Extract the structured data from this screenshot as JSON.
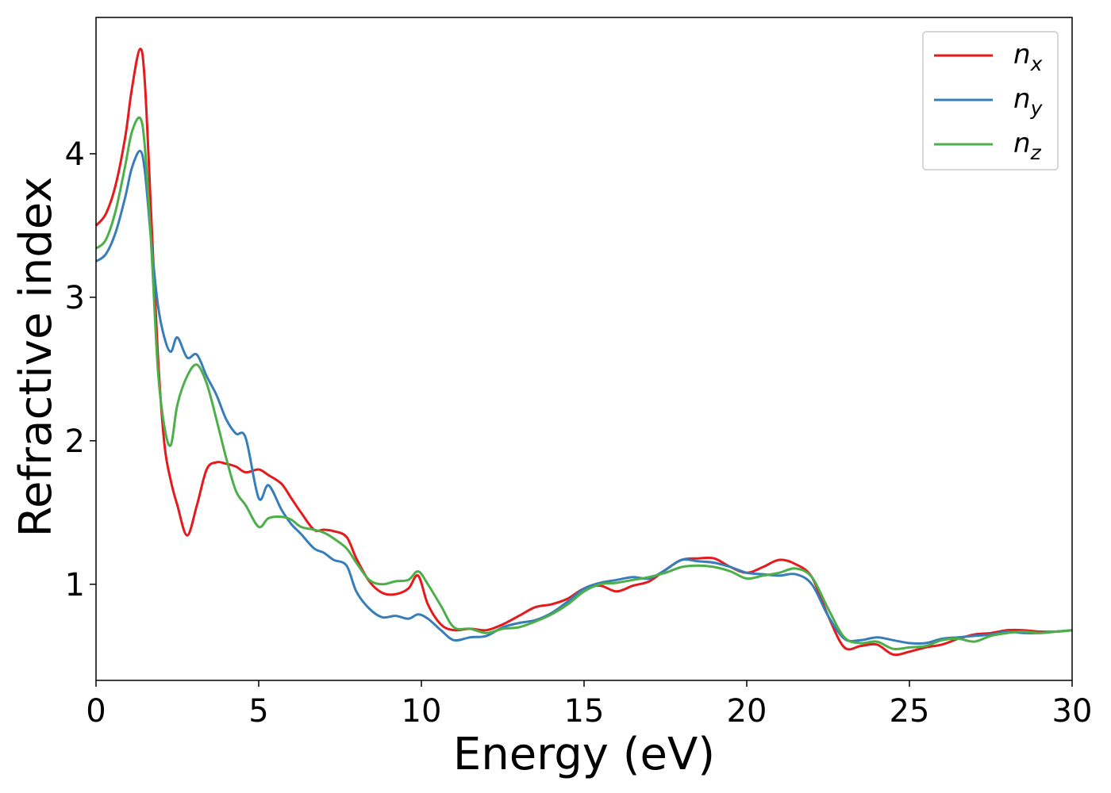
{
  "chart_data": {
    "type": "line",
    "title": "",
    "xlabel": "Energy (eV)",
    "ylabel": "Refractive index",
    "xlim": [
      0,
      30
    ],
    "ylim": [
      0.33,
      4.95
    ],
    "xticks": [
      0,
      5,
      10,
      15,
      20,
      25,
      30
    ],
    "yticks": [
      1,
      2,
      3,
      4
    ],
    "grid": false,
    "legend_position": "top-right",
    "x": [
      0,
      0.3,
      0.6,
      0.9,
      1.1,
      1.35,
      1.5,
      1.7,
      1.9,
      2.1,
      2.3,
      2.5,
      2.8,
      3.1,
      3.4,
      3.7,
      4.0,
      4.3,
      4.6,
      5.0,
      5.3,
      5.7,
      6.0,
      6.3,
      6.7,
      7.0,
      7.3,
      7.7,
      8.0,
      8.4,
      8.8,
      9.2,
      9.6,
      9.9,
      10.2,
      10.6,
      11.0,
      11.5,
      12.0,
      12.5,
      13.0,
      13.5,
      14.0,
      14.5,
      15.0,
      15.5,
      16.0,
      16.5,
      17.0,
      17.5,
      18.0,
      18.5,
      19.0,
      19.5,
      20.0,
      20.5,
      21.0,
      21.5,
      22.0,
      22.5,
      23.0,
      23.5,
      24.0,
      24.5,
      25.0,
      25.5,
      26.0,
      26.5,
      27.0,
      27.5,
      28.0,
      28.5,
      29.0,
      29.5,
      30.0
    ],
    "series": [
      {
        "name": "n_x",
        "color": "#e41a1c",
        "values": [
          3.5,
          3.58,
          3.78,
          4.12,
          4.45,
          4.73,
          4.5,
          3.55,
          2.6,
          1.98,
          1.72,
          1.55,
          1.34,
          1.55,
          1.8,
          1.85,
          1.84,
          1.82,
          1.78,
          1.8,
          1.76,
          1.7,
          1.6,
          1.5,
          1.38,
          1.38,
          1.37,
          1.33,
          1.18,
          1.02,
          0.94,
          0.93,
          0.97,
          1.06,
          0.86,
          0.72,
          0.68,
          0.69,
          0.68,
          0.72,
          0.78,
          0.84,
          0.86,
          0.9,
          0.97,
          0.99,
          0.95,
          0.99,
          1.02,
          1.1,
          1.17,
          1.18,
          1.18,
          1.12,
          1.08,
          1.12,
          1.17,
          1.14,
          1.05,
          0.78,
          0.56,
          0.57,
          0.58,
          0.51,
          0.53,
          0.56,
          0.58,
          0.62,
          0.65,
          0.66,
          0.68,
          0.68,
          0.67,
          0.67,
          0.68
        ]
      },
      {
        "name": "n_y",
        "color": "#377eb8",
        "values": [
          3.25,
          3.3,
          3.45,
          3.7,
          3.9,
          4.02,
          3.88,
          3.38,
          2.95,
          2.72,
          2.62,
          2.72,
          2.58,
          2.6,
          2.45,
          2.32,
          2.15,
          2.05,
          2.02,
          1.6,
          1.69,
          1.52,
          1.42,
          1.35,
          1.25,
          1.22,
          1.17,
          1.13,
          0.95,
          0.83,
          0.77,
          0.78,
          0.76,
          0.79,
          0.76,
          0.68,
          0.61,
          0.63,
          0.64,
          0.7,
          0.73,
          0.75,
          0.8,
          0.88,
          0.97,
          1.01,
          1.03,
          1.05,
          1.04,
          1.1,
          1.17,
          1.16,
          1.15,
          1.12,
          1.08,
          1.07,
          1.06,
          1.07,
          1.0,
          0.78,
          0.62,
          0.61,
          0.63,
          0.61,
          0.59,
          0.59,
          0.62,
          0.63,
          0.64,
          0.65,
          0.67,
          0.66,
          0.66,
          0.67,
          0.68
        ]
      },
      {
        "name": "n_z",
        "color": "#4daf4a",
        "values": [
          3.34,
          3.4,
          3.6,
          3.92,
          4.15,
          4.25,
          4.05,
          3.35,
          2.5,
          2.1,
          1.97,
          2.25,
          2.45,
          2.53,
          2.4,
          2.15,
          1.88,
          1.65,
          1.55,
          1.4,
          1.46,
          1.47,
          1.45,
          1.4,
          1.38,
          1.36,
          1.32,
          1.25,
          1.15,
          1.03,
          1.0,
          1.02,
          1.03,
          1.09,
          1.0,
          0.85,
          0.7,
          0.69,
          0.66,
          0.69,
          0.7,
          0.74,
          0.79,
          0.86,
          0.95,
          1.0,
          1.01,
          1.03,
          1.05,
          1.08,
          1.12,
          1.13,
          1.12,
          1.09,
          1.04,
          1.06,
          1.08,
          1.11,
          1.05,
          0.83,
          0.63,
          0.59,
          0.6,
          0.55,
          0.56,
          0.57,
          0.61,
          0.62,
          0.6,
          0.64,
          0.66,
          0.67,
          0.66,
          0.67,
          0.68
        ]
      }
    ]
  }
}
